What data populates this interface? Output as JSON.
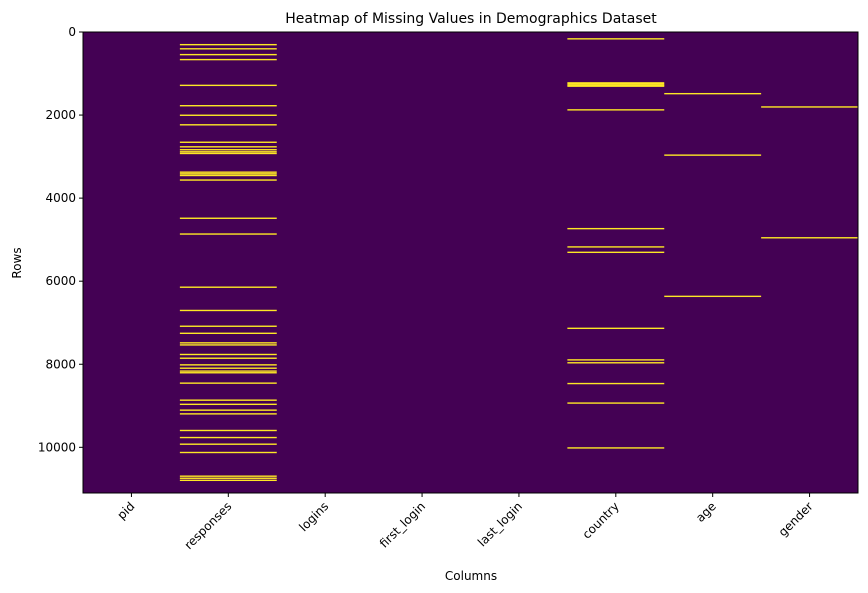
{
  "chart_data": {
    "type": "heatmap",
    "title": "Heatmap of Missing Values in Demographics Dataset",
    "xlabel": "Columns",
    "ylabel": "Rows",
    "columns": [
      "pid",
      "responses",
      "logins",
      "first_login",
      "last_login",
      "country",
      "age",
      "gender"
    ],
    "y_ticks": [
      0,
      2000,
      4000,
      6000,
      8000,
      10000
    ],
    "ylim": [
      0,
      11100
    ],
    "y_inverted": true,
    "grid": false,
    "legend": "none",
    "colors": {
      "present": "#440154",
      "missing": "#fde725"
    },
    "missing_rows": {
      "pid": [],
      "responses": [
        300,
        400,
        540,
        660,
        1280,
        1770,
        2000,
        2230,
        2650,
        2760,
        2830,
        2880,
        2920,
        3370,
        3410,
        3450,
        3560,
        4480,
        4860,
        6140,
        6700,
        7080,
        7250,
        7480,
        7530,
        7760,
        7850,
        8010,
        8090,
        8160,
        8200,
        8450,
        8860,
        8960,
        9100,
        9190,
        9590,
        9760,
        9920,
        10120,
        10690,
        10740,
        10790
      ],
      "logins": [],
      "first_login": [],
      "last_login": [],
      "country": [
        160,
        1220,
        1250,
        1280,
        1300,
        1870,
        4730,
        5170,
        5300,
        7130,
        7890,
        7960,
        8460,
        8930,
        10010
      ],
      "age": [
        1480,
        2960,
        6360
      ],
      "gender": [
        1800,
        4950
      ]
    }
  }
}
